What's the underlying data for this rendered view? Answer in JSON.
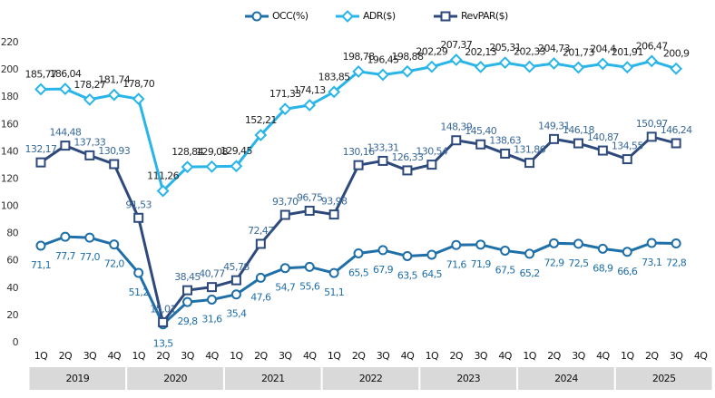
{
  "chart_data": {
    "type": "line",
    "categories": [
      "1Q",
      "2Q",
      "3Q",
      "4Q",
      "1Q",
      "2Q",
      "3Q",
      "4Q",
      "1Q",
      "2Q",
      "3Q",
      "4Q",
      "1Q",
      "2Q",
      "3Q",
      "4Q",
      "1Q",
      "2Q",
      "3Q",
      "4Q",
      "1Q",
      "2Q",
      "3Q",
      "4Q",
      "1Q",
      "2Q",
      "3Q",
      "4Q"
    ],
    "category_groups": [
      "2019",
      "2020",
      "2021",
      "2022",
      "2023",
      "2024",
      "2025"
    ],
    "series": [
      {
        "name": "OCC(%)",
        "color": "#1f6fa8",
        "marker": "circle",
        "label_color": "#1f6fa8",
        "values": [
          71.1,
          77.7,
          77.0,
          72.0,
          51.2,
          13.5,
          29.8,
          31.6,
          35.4,
          47.6,
          54.7,
          55.6,
          51.1,
          65.5,
          67.9,
          63.5,
          64.5,
          71.6,
          71.9,
          67.5,
          65.2,
          72.9,
          72.5,
          68.9,
          66.6,
          73.1,
          72.8,
          null
        ],
        "value_labels": [
          "71,1",
          "77,7",
          "77,0",
          "72,0",
          "51,2",
          "13,5",
          "29,8",
          "31,6",
          "35,4",
          "47,6",
          "54,7",
          "55,6",
          "51,1",
          "65,5",
          "67,9",
          "63,5",
          "64,5",
          "71,6",
          "71,9",
          "67,5",
          "65,2",
          "72,9",
          "72,5",
          "68,9",
          "66,6",
          "73,1",
          "72,8",
          null
        ]
      },
      {
        "name": "ADR($)",
        "color": "#29b5e8",
        "marker": "diamond",
        "label_color": "#222222",
        "values": [
          185.77,
          186.04,
          178.27,
          181.74,
          178.7,
          111.26,
          128.84,
          129.08,
          129.45,
          152.21,
          171.33,
          174.13,
          183.85,
          198.78,
          196.45,
          198.88,
          202.29,
          207.37,
          202.13,
          205.31,
          202.33,
          204.73,
          201.73,
          204.4,
          201.91,
          206.47,
          200.9,
          null
        ],
        "value_labels": [
          "185,77",
          "186,04",
          "178,27",
          "181,74",
          "178,70",
          "111,26",
          "128,84",
          "129,08",
          "129,45",
          "152,21",
          "171,33",
          "174,13",
          "183,85",
          "198,78",
          "196,45",
          "198,88",
          "202,29",
          "207,37",
          "202,13",
          "205,31",
          "202,33",
          "204,73",
          "201,73",
          "204,4",
          "201,91",
          "206,47",
          "200,9",
          null
        ]
      },
      {
        "name": "RevPAR($)",
        "color": "#2e4a7d",
        "marker": "square",
        "label_color": "#3a6a9a",
        "values": [
          132.17,
          144.48,
          137.33,
          130.93,
          91.53,
          15.01,
          38.45,
          40.77,
          45.78,
          72.47,
          93.7,
          96.75,
          93.98,
          130.16,
          133.31,
          126.33,
          130.54,
          148.39,
          145.4,
          138.63,
          131.86,
          149.31,
          146.18,
          140.87,
          134.55,
          150.97,
          146.24,
          null
        ],
        "value_labels": [
          "132,17",
          "144,48",
          "137,33",
          "130,93",
          "91,53",
          "15,01",
          "38,45",
          "40,77",
          "45,78",
          "72,47",
          "93,70",
          "96,75",
          "93,98",
          "130,16",
          "133,31",
          "126,33",
          "130,54",
          "148,39",
          "145,40",
          "138,63",
          "131,86",
          "149,31",
          "146,18",
          "140,87",
          "134,55",
          "150,97",
          "146,24",
          null
        ]
      }
    ],
    "ylim": [
      0,
      220
    ],
    "yticks": [
      0,
      20,
      40,
      60,
      80,
      100,
      120,
      140,
      160,
      180,
      200,
      220
    ],
    "legend": "top",
    "grid": false
  }
}
